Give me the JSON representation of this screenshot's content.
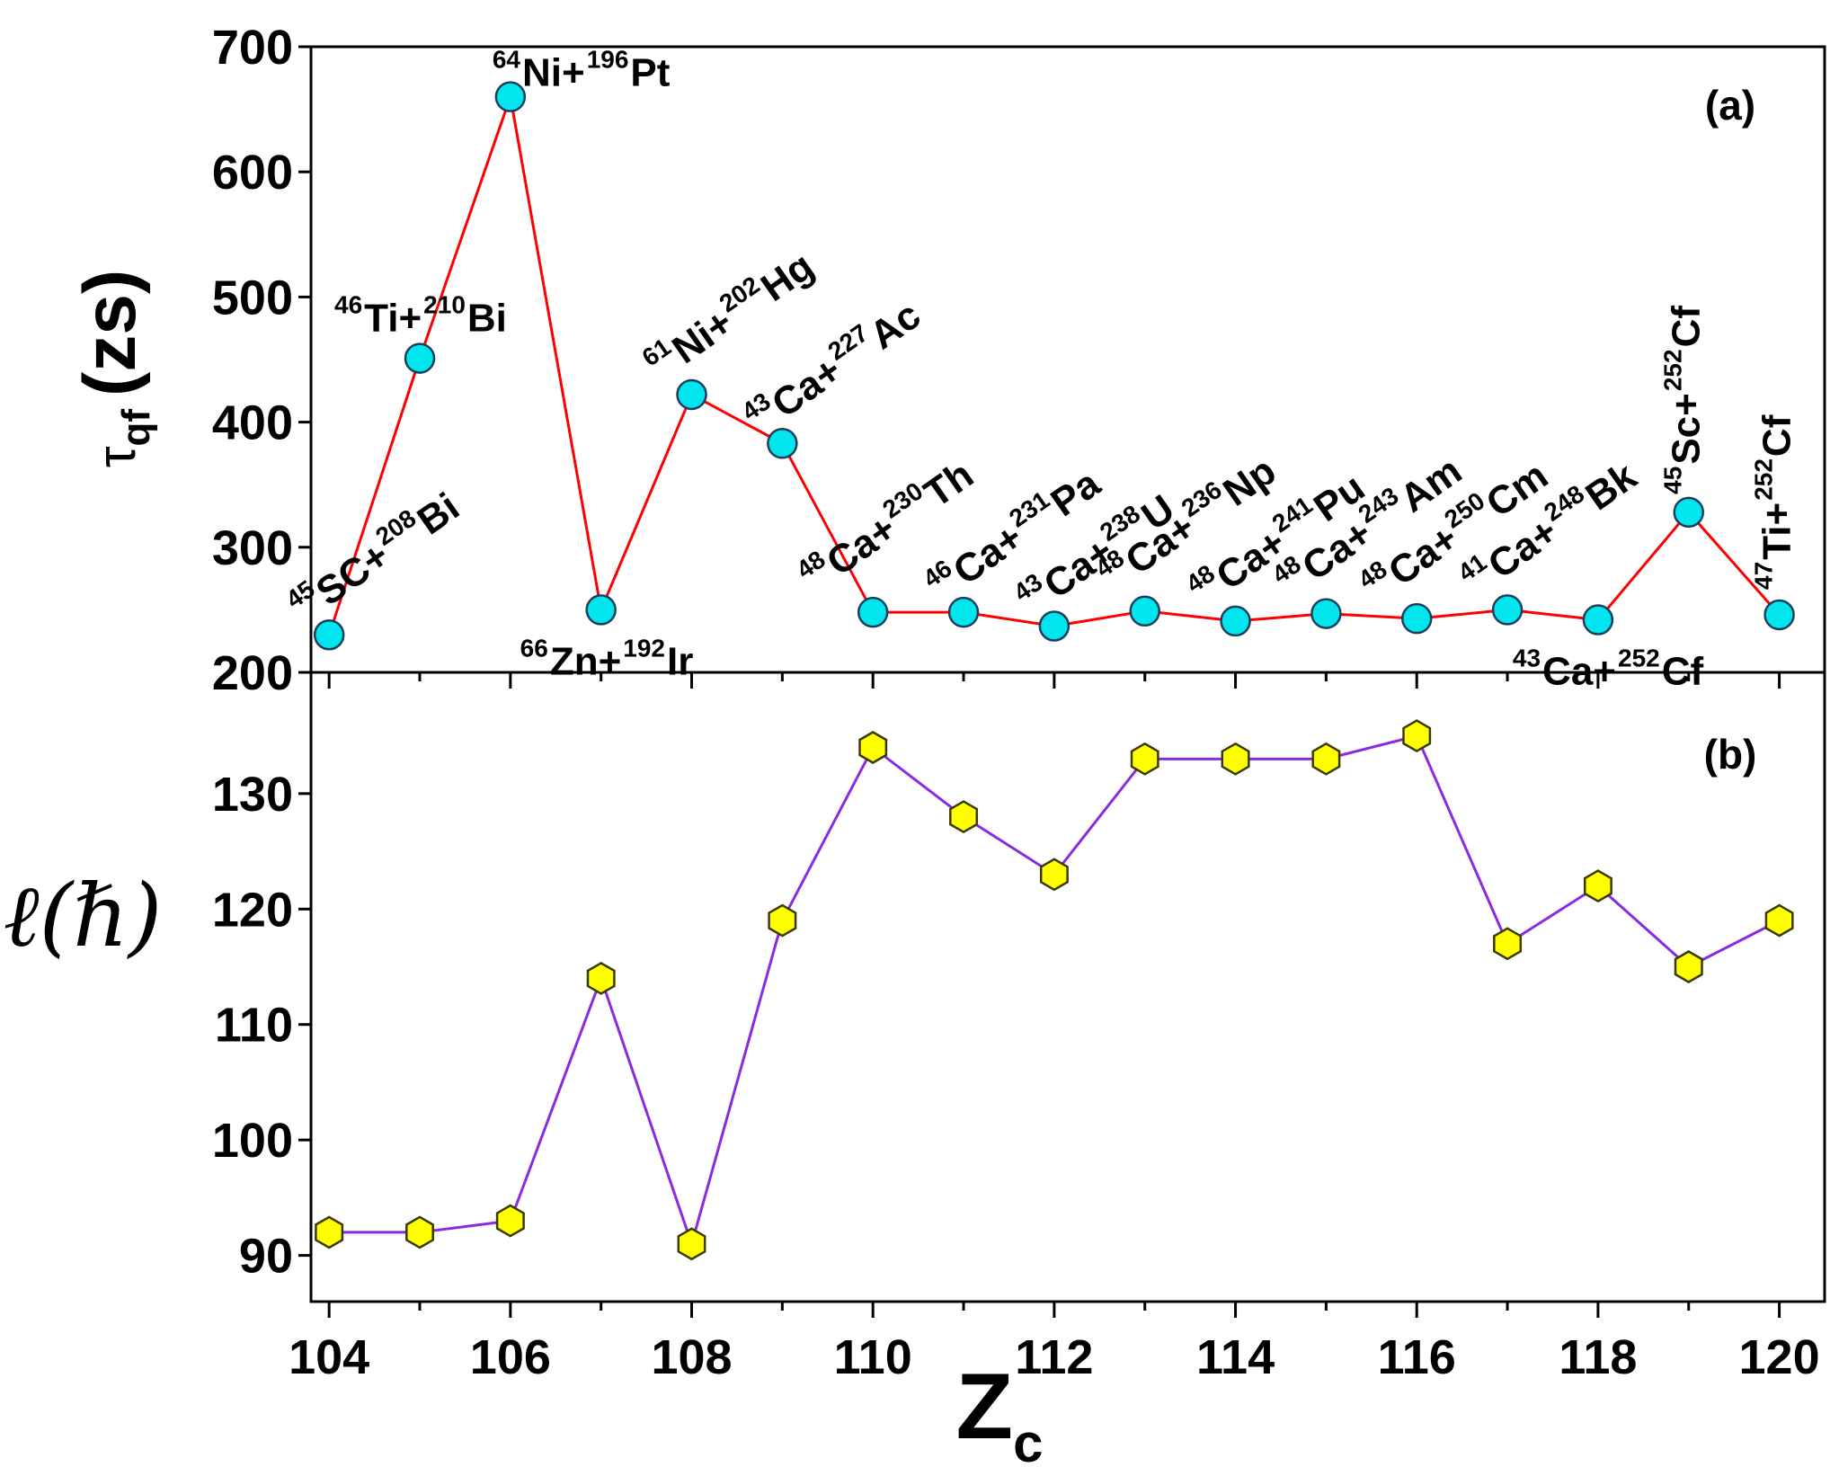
{
  "chart_data": [
    {
      "panel": "(a)",
      "type": "line",
      "ylabel_main": "τ",
      "ylabel_sub": "qf",
      "ylabel_unit": "(zs)",
      "xlim": [
        103.8,
        120.5
      ],
      "ylim": [
        200,
        700
      ],
      "yticks": [
        200,
        300,
        400,
        500,
        600,
        700
      ],
      "line_color": "#ff0000",
      "marker_color": "#00e5ee",
      "x": [
        104,
        105,
        106,
        107,
        108,
        109,
        110,
        111,
        112,
        113,
        114,
        115,
        116,
        117,
        118,
        119,
        120
      ],
      "values": [
        230,
        451,
        660,
        250,
        422,
        383,
        248,
        248,
        237,
        249,
        241,
        247,
        243,
        250,
        242,
        328,
        246
      ],
      "annotations": [
        {
          "x": 104,
          "sup1": "45",
          "t1": "SC+",
          "sup2": "208",
          "t2": "Bi"
        },
        {
          "x": 105,
          "sup1": "46",
          "t1": "Ti+",
          "sup2": "210",
          "t2": "Bi"
        },
        {
          "x": 106,
          "sup1": "64",
          "t1": "Ni+",
          "sup2": "196",
          "t2": "Pt"
        },
        {
          "x": 107,
          "sup1": "66",
          "t1": "Zn+",
          "sup2": "192",
          "t2": "Ir"
        },
        {
          "x": 108,
          "sup1": "61",
          "t1": "Ni+",
          "sup2": "202",
          "t2": "Hg"
        },
        {
          "x": 109,
          "sup1": "43",
          "t1": "Ca+",
          "sup2": "227",
          "t2": "Ac"
        },
        {
          "x": 110,
          "sup1": "48",
          "t1": "Ca+",
          "sup2": "230",
          "t2": "Th"
        },
        {
          "x": 111,
          "sup1": "46",
          "t1": "Ca+",
          "sup2": "231",
          "t2": "Pa"
        },
        {
          "x": 112,
          "sup1": "43",
          "t1": "Ca+",
          "sup2": "238",
          "t2": "U"
        },
        {
          "x": 113,
          "sup1": "48",
          "t1": "Ca+",
          "sup2": "236",
          "t2": "Np"
        },
        {
          "x": 114,
          "sup1": "48",
          "t1": "Ca+",
          "sup2": "241",
          "t2": "Pu"
        },
        {
          "x": 115,
          "sup1": "48",
          "t1": "Ca+",
          "sup2": "243",
          "t2": "Am"
        },
        {
          "x": 116,
          "sup1": "48",
          "t1": "Ca+",
          "sup2": "250",
          "t2": "Cm"
        },
        {
          "x": 117,
          "sup1": "41",
          "t1": "Ca+",
          "sup2": "248",
          "t2": "Bk"
        },
        {
          "x": 118,
          "sup1": "43",
          "t1": "Ca+",
          "sup2": "252",
          "t2": "Cf"
        },
        {
          "x": 119,
          "sup1": "45",
          "t1": "Sc+",
          "sup2": "252",
          "t2": "Cf"
        },
        {
          "x": 120,
          "sup1": "47",
          "t1": "Ti+",
          "sup2": "252",
          "t2": "Cf"
        }
      ]
    },
    {
      "panel": "(b)",
      "type": "line",
      "ylabel": "ℓ(ℏ)",
      "xlabel_main": "Z",
      "xlabel_sub": "c",
      "xlim": [
        103.8,
        120.5
      ],
      "ylim": [
        86,
        140.5
      ],
      "yticks": [
        90,
        100,
        110,
        120,
        130
      ],
      "xticks": [
        104,
        106,
        108,
        110,
        112,
        114,
        116,
        118,
        120
      ],
      "line_color": "#8a2be2",
      "marker_color": "#ffff00",
      "x": [
        104,
        105,
        106,
        107,
        108,
        109,
        110,
        111,
        112,
        113,
        114,
        115,
        116,
        117,
        118,
        119,
        120
      ],
      "values": [
        92,
        92,
        93,
        114,
        91,
        119,
        134,
        128,
        123,
        133,
        133,
        133,
        135,
        117,
        122,
        115,
        119
      ]
    }
  ]
}
